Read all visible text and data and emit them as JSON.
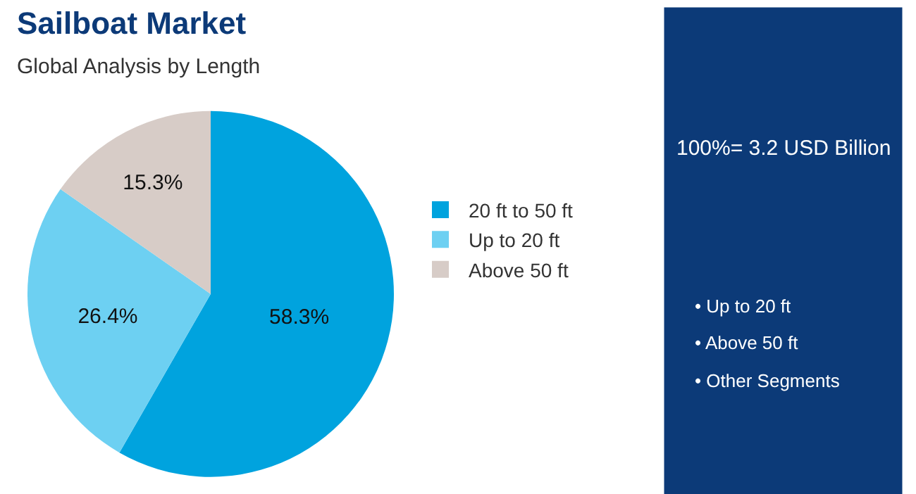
{
  "chart_data": {
    "type": "pie",
    "title": "Sailboat Market",
    "subtitle": "Global Analysis by Length",
    "categories": [
      "20 ft to 50 ft",
      "Up to 20 ft",
      "Above 50 ft"
    ],
    "values": [
      58.3,
      26.4,
      15.3
    ],
    "value_labels": [
      "58.3%",
      "26.4%",
      "15.3%"
    ],
    "colors": [
      "#00a3de",
      "#6dd0f2",
      "#d7ccc7"
    ],
    "legend": "right",
    "annotations": [
      "100%= 3.2 USD Billion",
      "• Up to 20 ft",
      "• Above 50 ft",
      "• Other Segments"
    ]
  }
}
